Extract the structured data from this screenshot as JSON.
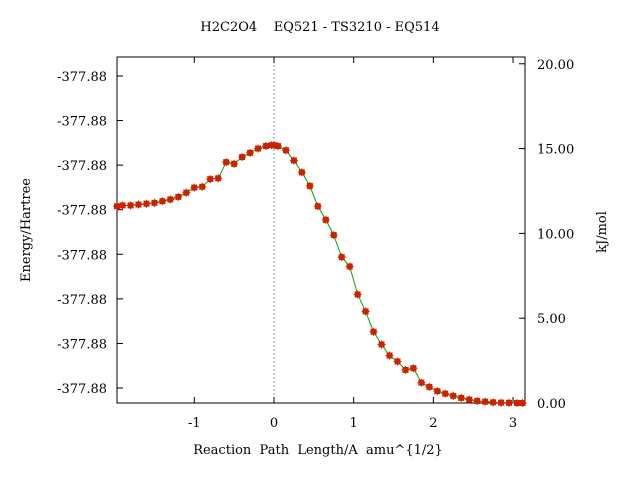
{
  "chart_data": {
    "type": "line",
    "title": "H2C2O4    EQ521 - TS3210 - EQ514",
    "xlabel": "Reaction  Path  Length/A  amu^{1/2}",
    "ylabel": "Energy/Hartree",
    "ylabel_right": "kJ/mol",
    "xlim": [
      -1.97,
      3.15
    ],
    "ylim_right": [
      0,
      20.4
    ],
    "x_ticks": [
      "-1",
      "0",
      "1",
      "2",
      "3"
    ],
    "x_tick_values": [
      -1,
      0,
      1,
      2,
      3
    ],
    "y_ticks_left": [
      "-377.88",
      "-377.88",
      "-377.88",
      "-377.88",
      "-377.88",
      "-377.88",
      "-377.88",
      "-377.88"
    ],
    "y_ticks_right": [
      "0.00",
      "5.00",
      "10.00",
      "15.00",
      "20.00"
    ],
    "y_tick_values_right": [
      0,
      5,
      10,
      15,
      20
    ],
    "ts_marker_x": 0,
    "grid": false,
    "series": [
      {
        "line_color": "#00aa00",
        "marker_color": "#cc2200",
        "x": [
          -1.97,
          -1.9,
          -1.8,
          -1.7,
          -1.6,
          -1.5,
          -1.4,
          -1.3,
          -1.2,
          -1.1,
          -1.0,
          -0.9,
          -0.8,
          -0.7,
          -0.6,
          -0.5,
          -0.4,
          -0.3,
          -0.2,
          -0.1,
          -0.03,
          0.0,
          0.05,
          0.15,
          0.25,
          0.35,
          0.45,
          0.55,
          0.65,
          0.75,
          0.85,
          0.95,
          1.05,
          1.15,
          1.25,
          1.35,
          1.45,
          1.55,
          1.65,
          1.75,
          1.85,
          1.95,
          2.05,
          2.15,
          2.25,
          2.35,
          2.45,
          2.55,
          2.65,
          2.75,
          2.85,
          2.95,
          3.05,
          3.12
        ],
        "y": [
          11.6,
          11.65,
          11.65,
          11.7,
          11.75,
          11.8,
          11.9,
          12.0,
          12.15,
          12.4,
          12.7,
          12.75,
          13.2,
          13.25,
          14.2,
          14.1,
          14.5,
          14.75,
          15.0,
          15.15,
          15.2,
          15.2,
          15.15,
          14.9,
          14.3,
          13.6,
          12.8,
          11.6,
          10.8,
          9.9,
          8.6,
          8.05,
          6.4,
          5.4,
          4.2,
          3.45,
          2.8,
          2.45,
          1.95,
          2.05,
          1.2,
          0.95,
          0.7,
          0.55,
          0.42,
          0.3,
          0.2,
          0.12,
          0.08,
          0.04,
          0.02,
          0.01,
          0.0,
          0.0
        ]
      }
    ]
  }
}
